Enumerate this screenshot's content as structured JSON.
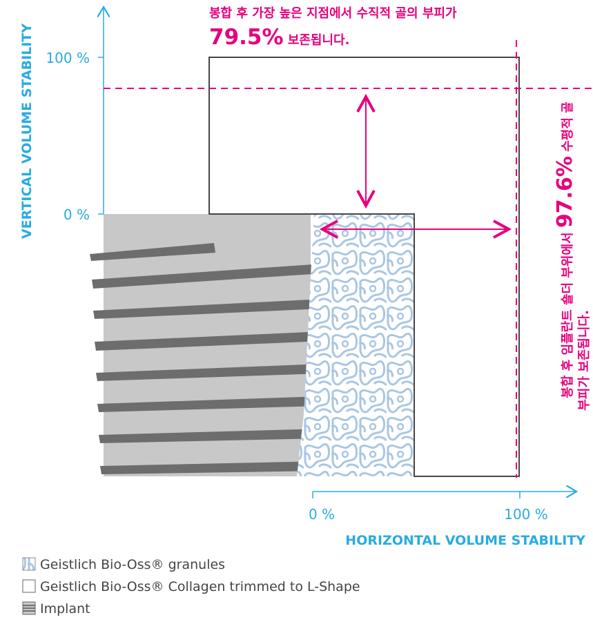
{
  "axes": {
    "y_label": "VERTICAL VOLUME STABILITY",
    "y_ticks": [
      "100 %",
      "0 %"
    ],
    "x_label": "HORIZONTAL VOLUME STABILITY",
    "x_ticks": [
      "0 %",
      "100 %"
    ]
  },
  "annotations": {
    "vertical": {
      "line1": "봉합 후 가장 높은 지점에서 수직적 골의 부피가",
      "value": "79.5%",
      "rest": " 보존됩니다."
    },
    "horizontal": {
      "before": "봉합 후 임플란트 숄더 부위에서 ",
      "value": "97.6%",
      "after": " 수평적 골",
      "line2": "부피가 보존됩니다."
    }
  },
  "legend": [
    "Geistlich Bio-Oss® granules",
    "Geistlich Bio-Oss® Collagen trimmed to L-Shape",
    "Implant"
  ]
}
